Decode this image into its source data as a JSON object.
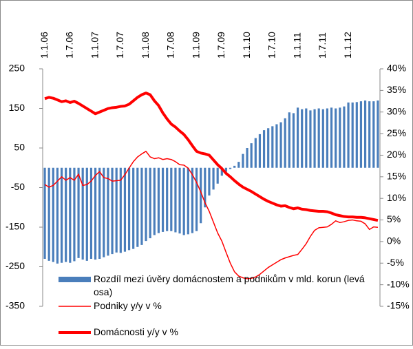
{
  "chart_data": {
    "type": "combo",
    "categories": [
      "1.1.06",
      null,
      null,
      null,
      null,
      null,
      "1.7.06",
      null,
      null,
      null,
      null,
      null,
      "1.1.07",
      null,
      null,
      null,
      null,
      null,
      "1.7.07",
      null,
      null,
      null,
      null,
      null,
      "1.1.08",
      null,
      null,
      null,
      null,
      null,
      "1.7.08",
      null,
      null,
      null,
      null,
      null,
      "1.1.09",
      null,
      null,
      null,
      null,
      null,
      "1.7.09",
      null,
      null,
      null,
      null,
      null,
      "1.1.10",
      null,
      null,
      null,
      null,
      null,
      "1.7.10",
      null,
      null,
      null,
      null,
      null,
      "1.1.11",
      null,
      null,
      null,
      null,
      null,
      "1.7.11",
      null,
      null,
      null,
      null,
      null,
      "1.1.12",
      null,
      null,
      null,
      null,
      null,
      null,
      null
    ],
    "series": [
      {
        "name": "Rozdíl mezi úvěry domácnostem a podnikům v mld. korun (levá osa)",
        "type": "bar",
        "color": "#4a7ebb",
        "values": [
          -230,
          -235,
          -238,
          -242,
          -240,
          -238,
          -240,
          -236,
          -228,
          -232,
          -235,
          -230,
          -232,
          -230,
          -226,
          -222,
          -218,
          -214,
          -215,
          -212,
          -208,
          -205,
          -200,
          -195,
          -185,
          -178,
          -170,
          -165,
          -162,
          -160,
          -160,
          -163,
          -166,
          -170,
          -168,
          -165,
          -160,
          -140,
          -100,
          -70,
          -55,
          -40,
          -20,
          -10,
          -3,
          5,
          15,
          35,
          50,
          62,
          75,
          85,
          95,
          100,
          105,
          110,
          115,
          125,
          140,
          138,
          152,
          148,
          150,
          145,
          148,
          150,
          148,
          150,
          152,
          150,
          152,
          155,
          165,
          165,
          166,
          168,
          170,
          168,
          168,
          170
        ]
      },
      {
        "name": "Podniky y/y v %",
        "type": "line",
        "axis": "y2",
        "color": "#ff0000",
        "values": [
          13.2,
          12.6,
          13.0,
          14.0,
          15.0,
          14.2,
          14.8,
          14.2,
          15.6,
          13.0,
          13.2,
          14.0,
          15.3,
          16.2,
          14.8,
          14.6,
          14.0,
          14.1,
          14.2,
          15.5,
          17.0,
          18.5,
          19.6,
          20.3,
          20.9,
          19.6,
          19.2,
          19.4,
          19.0,
          19.2,
          19.0,
          18.5,
          17.8,
          17.7,
          17.0,
          15.5,
          13.7,
          11.5,
          9.0,
          7.0,
          4.5,
          2.0,
          0.1,
          -2.5,
          -5.0,
          -7.0,
          -8.0,
          -8.4,
          -8.6,
          -8.5,
          -8.2,
          -7.6,
          -6.8,
          -6.0,
          -5.4,
          -4.8,
          -4.2,
          -3.8,
          -3.5,
          -3.2,
          -3.0,
          -1.8,
          -0.5,
          1.2,
          2.6,
          3.2,
          3.3,
          3.4,
          4.0,
          4.8,
          4.4,
          4.6,
          4.9,
          5.0,
          4.8,
          4.7,
          4.1,
          2.8,
          3.4,
          3.3
        ]
      },
      {
        "name": "Domácnosti y/y v %",
        "type": "line",
        "axis": "y2",
        "color": "#ff0000",
        "values": [
          33.1,
          33.4,
          33.2,
          32.8,
          32.4,
          32.6,
          32.2,
          32.5,
          32.0,
          31.4,
          30.8,
          30.2,
          29.6,
          30.0,
          30.4,
          30.8,
          31.0,
          31.1,
          31.3,
          31.4,
          31.8,
          32.6,
          33.4,
          34.0,
          34.4,
          34.0,
          32.6,
          31.5,
          29.8,
          28.4,
          27.2,
          26.5,
          25.6,
          24.8,
          23.6,
          22.2,
          20.9,
          20.5,
          20.3,
          20.0,
          18.9,
          17.8,
          16.9,
          15.8,
          15.0,
          14.1,
          13.3,
          12.6,
          12.1,
          11.6,
          11.0,
          10.4,
          9.8,
          9.3,
          8.9,
          8.5,
          8.2,
          8.3,
          7.9,
          7.6,
          7.8,
          7.5,
          7.4,
          7.2,
          7.1,
          7.0,
          7.0,
          6.9,
          6.6,
          6.2,
          6.0,
          5.8,
          5.7,
          5.7,
          5.6,
          5.6,
          5.5,
          5.3,
          5.1,
          4.9
        ]
      }
    ],
    "ylim": [
      -350,
      250
    ],
    "yticks": [
      -350,
      -250,
      -150,
      -50,
      50,
      150,
      250
    ],
    "y2lim": [
      -15,
      40
    ],
    "y2ticks": [
      {
        "value": -15,
        "label": "-15%"
      },
      {
        "value": -10,
        "label": "-10%"
      },
      {
        "value": -5,
        "label": "-5%"
      },
      {
        "value": 0,
        "label": "0%"
      },
      {
        "value": 5,
        "label": "5%"
      },
      {
        "value": 10,
        "label": "10%"
      },
      {
        "value": 15,
        "label": "15%"
      },
      {
        "value": 20,
        "label": "20%"
      },
      {
        "value": 25,
        "label": "25%"
      },
      {
        "value": 30,
        "label": "30%"
      },
      {
        "value": 35,
        "label": "35%"
      },
      {
        "value": 40,
        "label": "40%"
      }
    ],
    "grid": false
  }
}
